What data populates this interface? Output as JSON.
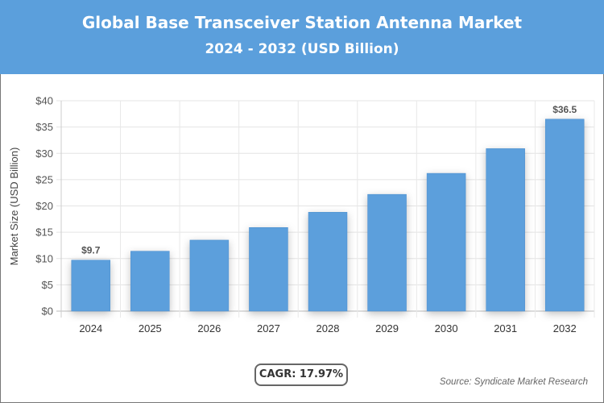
{
  "header": {
    "title": "Global Base Transceiver Station Antenna Market",
    "subtitle": "2024 - 2032 (USD Billion)"
  },
  "chart_data": {
    "type": "bar",
    "categories": [
      "2024",
      "2025",
      "2026",
      "2027",
      "2028",
      "2029",
      "2030",
      "2031",
      "2032"
    ],
    "values": [
      9.7,
      11.4,
      13.5,
      15.9,
      18.8,
      22.2,
      26.2,
      30.9,
      36.5
    ],
    "data_labels": {
      "0": "$9.7",
      "8": "$36.5"
    },
    "ylabel": "Market Size (USD Billion)",
    "xlabel": "",
    "ylim": [
      0,
      40
    ],
    "yticks": [
      "$0",
      "$5",
      "$10",
      "$15",
      "$20",
      "$25",
      "$30",
      "$35",
      "$40"
    ],
    "grid": true,
    "bar_color": "#5b9fdc"
  },
  "footer": {
    "cagr": "CAGR: 17.97%",
    "source": "Source: Syndicate Market Research"
  }
}
